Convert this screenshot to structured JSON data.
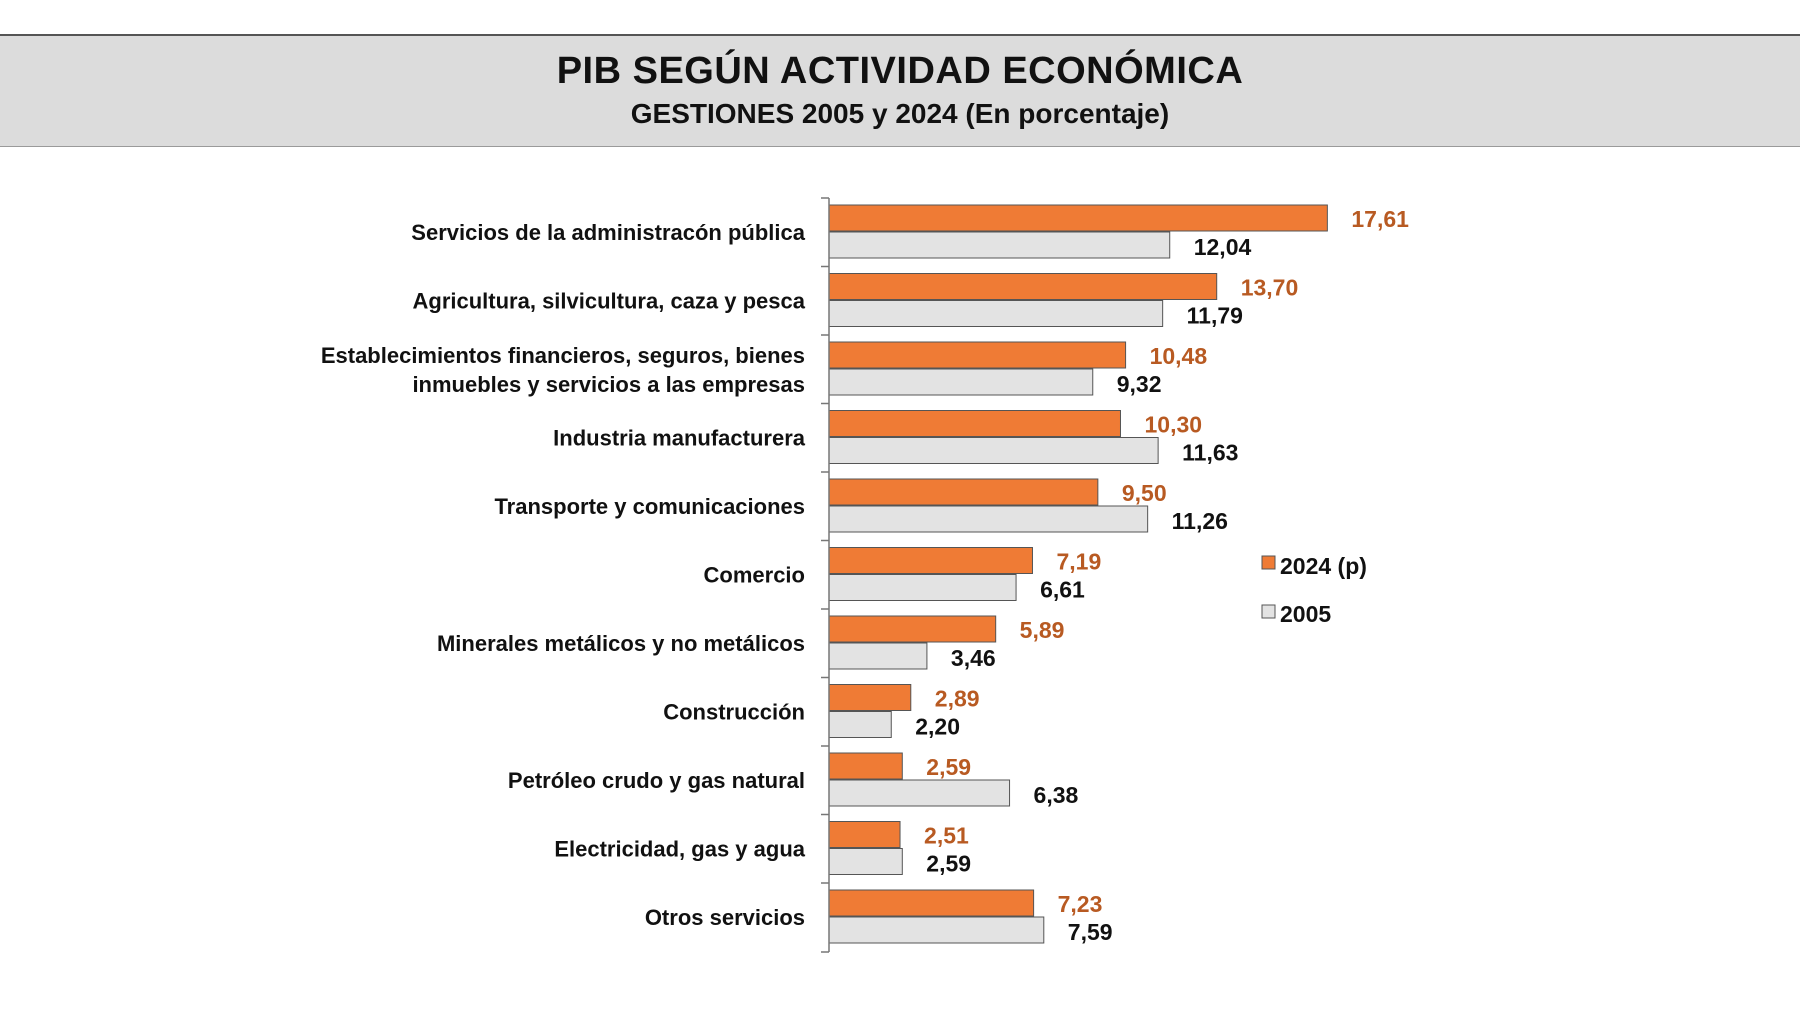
{
  "header": {
    "title": "PIB SEGÚN ACTIVIDAD ECONÓMICA",
    "subtitle": "GESTIONES 2005 y 2024 (En porcentaje)"
  },
  "colors": {
    "series_2024": "#ef7b35",
    "series_2024_label": "#b85a22",
    "series_2005": "#e3e3e3",
    "bar_outline": "#555555"
  },
  "chart_data": {
    "type": "bar",
    "orientation": "horizontal",
    "title": "PIB SEGÚN ACTIVIDAD ECONÓMICA",
    "subtitle": "GESTIONES 2005 y 2024 (En porcentaje)",
    "categories": [
      [
        "Servicios de la administracón pública"
      ],
      [
        "Agricultura, silvicultura, caza y pesca"
      ],
      [
        "Establecimientos financieros, seguros, bienes",
        "inmuebles y servicios a las empresas"
      ],
      [
        "Industria manufacturera"
      ],
      [
        "Transporte y comunicaciones"
      ],
      [
        "Comercio"
      ],
      [
        "Minerales metálicos y no metálicos"
      ],
      [
        "Construcción"
      ],
      [
        "Petróleo crudo y gas natural"
      ],
      [
        "Electricidad, gas y agua"
      ],
      [
        "Otros servicios"
      ]
    ],
    "series": [
      {
        "name": "2024 (p)",
        "values": [
          17.61,
          13.7,
          10.48,
          10.3,
          9.5,
          7.19,
          5.89,
          2.89,
          2.59,
          2.51,
          7.23
        ],
        "labels": [
          "17,61",
          "13,70",
          "10,48",
          "10,30",
          "9,50",
          "7,19",
          "5,89",
          "2,89",
          "2,59",
          "2,51",
          "7,23"
        ]
      },
      {
        "name": "2005",
        "values": [
          12.04,
          11.79,
          9.32,
          11.63,
          11.26,
          6.61,
          3.46,
          2.2,
          6.38,
          2.59,
          7.59
        ],
        "labels": [
          "12,04",
          "11,79",
          "9,32",
          "11,63",
          "11,26",
          "6,61",
          "3,46",
          "2,20",
          "6,38",
          "2,59",
          "7,59"
        ]
      }
    ],
    "xlim": [
      0,
      20
    ],
    "grid": false,
    "legend_position": "right"
  }
}
